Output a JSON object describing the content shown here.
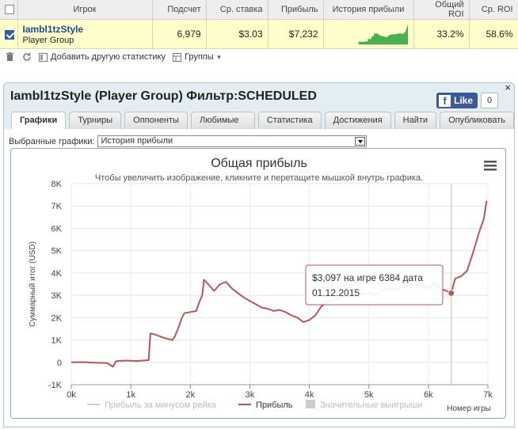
{
  "table": {
    "headers": [
      "",
      "Игрок",
      "Подсчет",
      "Ср. ставка",
      "Прибыль",
      "История прибыли",
      "Общий ROI",
      "Ср. ROI"
    ],
    "row": {
      "checked": true,
      "player_name": "Iambl1tzStyle",
      "player_type": "Player Group",
      "count": "6,979",
      "avg_stake": "$3.03",
      "profit": "$7,232",
      "total_roi": "33.2%",
      "avg_roi": "58.6%"
    }
  },
  "toolbar": {
    "add_stats_label": "Добавить другую статистику",
    "groups_label": "Группы"
  },
  "panel": {
    "title": "Iambl1tzStyle (Player Group) Фильтр:SCHEDULED",
    "like_label": "Like",
    "like_count": "0",
    "close": "×",
    "tabs": [
      {
        "label": "Графики",
        "active": true
      },
      {
        "label": "Турниры"
      },
      {
        "label": "Оппоненты"
      },
      {
        "label": "Любимые игры"
      },
      {
        "label": "Статистика"
      },
      {
        "label": "Достижения"
      },
      {
        "label": "Найти"
      },
      {
        "label": "Опубликовать"
      }
    ],
    "graph_select_label": "Выбранные графики:",
    "graph_select_value": "История прибыли"
  },
  "chart_data": {
    "type": "line",
    "title": "Общая прибыль",
    "subtitle": "Чтобы увеличить изображение, кликните и перетащите мышкой внутрь графика.",
    "ylabel": "Суммарный итог (USD)",
    "xlabel": "Номер игры",
    "xlim": [
      0,
      7000
    ],
    "ylim": [
      -1000,
      8000
    ],
    "x_ticks": [
      "0k",
      "1k",
      "2k",
      "3k",
      "4k",
      "5k",
      "6k",
      "7k"
    ],
    "y_ticks": [
      "-1K",
      "0",
      "1K",
      "2K",
      "3K",
      "4K",
      "5K",
      "6K",
      "7K",
      "8K"
    ],
    "grid": true,
    "legend_position": "bottom",
    "legend": [
      {
        "name": "Прибыль за минусом рейка",
        "color": "#cccccc",
        "visible": false
      },
      {
        "name": "Прибыль",
        "color": "#b5565a",
        "visible": true
      },
      {
        "name": "Значительные выигрыши",
        "color": "#cccccc",
        "visible": false
      }
    ],
    "series": [
      {
        "name": "Прибыль",
        "color": "#b5565a",
        "points": [
          [
            0,
            0
          ],
          [
            200,
            10
          ],
          [
            400,
            -20
          ],
          [
            600,
            -30
          ],
          [
            700,
            -200
          ],
          [
            750,
            50
          ],
          [
            900,
            80
          ],
          [
            1100,
            60
          ],
          [
            1300,
            100
          ],
          [
            1330,
            1300
          ],
          [
            1400,
            1250
          ],
          [
            1550,
            1100
          ],
          [
            1700,
            1000
          ],
          [
            1740,
            1150
          ],
          [
            1800,
            1550
          ],
          [
            1860,
            2000
          ],
          [
            1900,
            2200
          ],
          [
            2000,
            2250
          ],
          [
            2100,
            2300
          ],
          [
            2150,
            2700
          ],
          [
            2200,
            3000
          ],
          [
            2230,
            3700
          ],
          [
            2300,
            3500
          ],
          [
            2400,
            3200
          ],
          [
            2500,
            3500
          ],
          [
            2600,
            3600
          ],
          [
            2700,
            3300
          ],
          [
            2800,
            3100
          ],
          [
            2900,
            2900
          ],
          [
            3000,
            2750
          ],
          [
            3100,
            2600
          ],
          [
            3200,
            2450
          ],
          [
            3300,
            2400
          ],
          [
            3400,
            2300
          ],
          [
            3500,
            2350
          ],
          [
            3600,
            2250
          ],
          [
            3700,
            2100
          ],
          [
            3800,
            2000
          ],
          [
            3900,
            1800
          ],
          [
            4000,
            1900
          ],
          [
            4100,
            2100
          ],
          [
            4200,
            2500
          ],
          [
            4300,
            2700
          ],
          [
            4400,
            2800
          ],
          [
            4500,
            2900
          ],
          [
            4600,
            3000
          ],
          [
            4700,
            3100
          ],
          [
            4800,
            3150
          ],
          [
            4900,
            3050
          ],
          [
            5000,
            3100
          ],
          [
            5100,
            3000
          ],
          [
            5200,
            3200
          ],
          [
            5300,
            3300
          ],
          [
            5400,
            3250
          ],
          [
            5500,
            3300
          ],
          [
            5600,
            3400
          ],
          [
            5700,
            3450
          ],
          [
            5800,
            3500
          ],
          [
            5900,
            3400
          ],
          [
            6000,
            3300
          ],
          [
            6100,
            3550
          ],
          [
            6200,
            3300
          ],
          [
            6300,
            3200
          ],
          [
            6384,
            3097
          ],
          [
            6450,
            3750
          ],
          [
            6550,
            3850
          ],
          [
            6650,
            4100
          ],
          [
            6750,
            4900
          ],
          [
            6850,
            5800
          ],
          [
            6930,
            6400
          ],
          [
            6979,
            7232
          ]
        ]
      }
    ],
    "tooltip": {
      "game": 6384,
      "value": 3097,
      "text_line1": "$3,097 на игре 6384 дата",
      "text_line2": "01.12.2015"
    }
  }
}
